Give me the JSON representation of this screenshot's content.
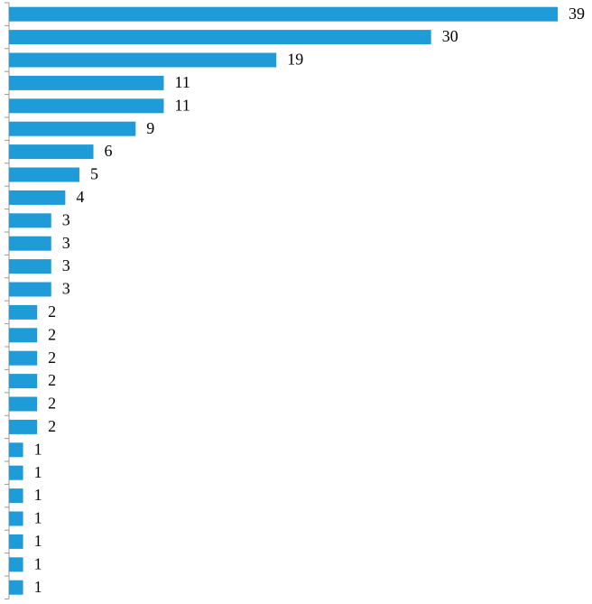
{
  "chart_data": {
    "type": "bar",
    "orientation": "horizontal",
    "categories": [
      null,
      null,
      null,
      null,
      null,
      null,
      null,
      null,
      null,
      null,
      null,
      null,
      null,
      null,
      null,
      null,
      null,
      null,
      null,
      null,
      null,
      null,
      null,
      null,
      null,
      null
    ],
    "values": [
      39,
      30,
      19,
      11,
      11,
      9,
      6,
      5,
      4,
      3,
      3,
      3,
      3,
      2,
      2,
      2,
      2,
      2,
      2,
      1,
      1,
      1,
      1,
      1,
      1,
      1
    ],
    "color": "#1f9bd7"
  }
}
